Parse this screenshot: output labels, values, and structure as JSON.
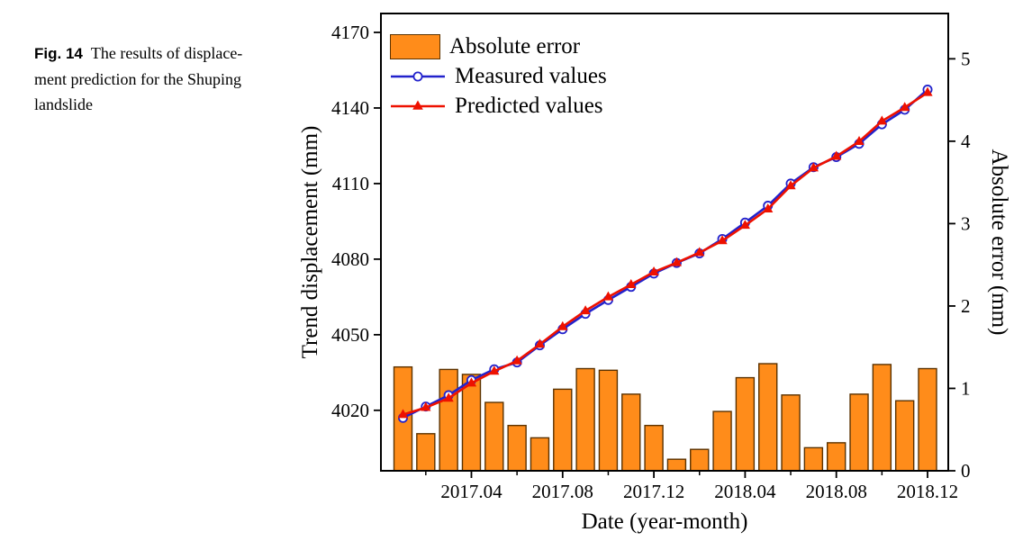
{
  "caption": {
    "label": "Fig. 14",
    "lines": [
      "The results of displace-",
      "ment prediction for the Shuping",
      "landslide"
    ]
  },
  "colors": {
    "bar_fill": "#FF8C1A",
    "bar_edge": "#5b3200",
    "measured_blue": "#2222CC",
    "predicted_red": "#EE1100",
    "axis_black": "#000000"
  },
  "chart_data": {
    "type": "bar+line",
    "xlabel": "Date (year-month)",
    "ylabel_left": "Trend displacement (mm)",
    "ylabel_right": "Absolute error (mm)",
    "x": [
      "2017.01",
      "2017.02",
      "2017.03",
      "2017.04",
      "2017.05",
      "2017.06",
      "2017.07",
      "2017.08",
      "2017.09",
      "2017.10",
      "2017.11",
      "2017.12",
      "2018.01",
      "2018.02",
      "2018.03",
      "2018.04",
      "2018.05",
      "2018.06",
      "2018.07",
      "2018.08",
      "2018.09",
      "2018.10",
      "2018.11",
      "2018.12"
    ],
    "x_major_ticks": [
      "2017.04",
      "2017.08",
      "2017.12",
      "2018.04",
      "2018.08",
      "2018.12"
    ],
    "x_minor_ticks": [
      "2017.02",
      "2017.06",
      "2017.10",
      "2018.02",
      "2018.06",
      "2018.10"
    ],
    "left_axis": {
      "ticks": [
        4020,
        4050,
        4080,
        4110,
        4140,
        4170
      ],
      "range": [
        3996,
        4177.5
      ]
    },
    "right_axis": {
      "ticks": [
        0,
        1,
        2,
        3,
        4,
        5
      ],
      "range": [
        0,
        5.55
      ]
    },
    "legend_position": "top-left",
    "grid": false,
    "series": [
      {
        "name": "Absolute error",
        "type": "bar",
        "axis": "right",
        "values": [
          1.26,
          0.45,
          1.23,
          1.17,
          0.83,
          0.55,
          0.4,
          0.99,
          1.24,
          1.22,
          0.93,
          0.55,
          0.14,
          0.26,
          0.72,
          1.13,
          1.3,
          0.92,
          0.28,
          0.34,
          0.93,
          1.29,
          0.85,
          1.24
        ]
      },
      {
        "name": "Measured values",
        "type": "line",
        "marker": "open-circle",
        "axis": "left",
        "values": [
          4017.0,
          4021.5,
          4026.0,
          4032.0,
          4036.3,
          4039.0,
          4045.8,
          4052.2,
          4058.3,
          4063.8,
          4069.0,
          4074.3,
          4078.5,
          4082.3,
          4088.0,
          4094.5,
          4101.2,
          4110.0,
          4116.5,
          4120.5,
          4125.8,
          4133.5,
          4139.3,
          4147.3
        ]
      },
      {
        "name": "Predicted values",
        "type": "line",
        "marker": "filled-triangle",
        "axis": "left",
        "values": [
          4018.3,
          4021.1,
          4024.8,
          4030.8,
          4035.5,
          4039.6,
          4046.2,
          4053.2,
          4059.5,
          4065.0,
          4069.9,
          4074.9,
          4078.6,
          4082.6,
          4087.3,
          4093.4,
          4099.9,
          4109.1,
          4116.2,
          4120.8,
          4126.7,
          4134.8,
          4140.2,
          4146.1
        ]
      }
    ]
  }
}
